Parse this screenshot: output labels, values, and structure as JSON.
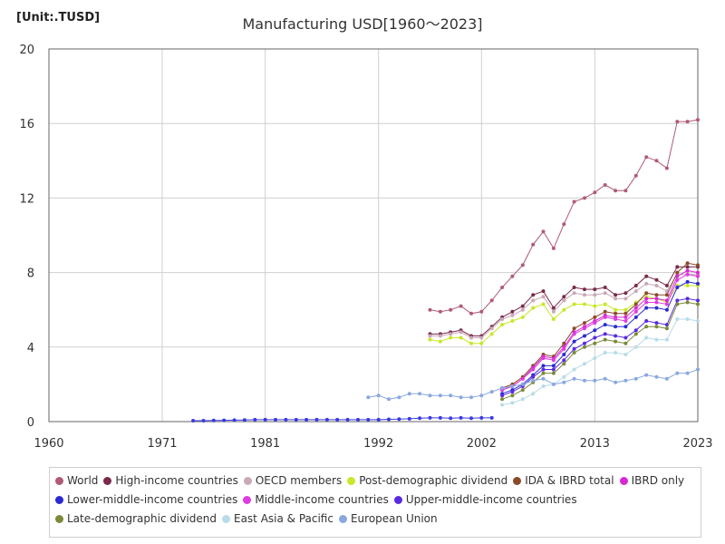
{
  "unit_label": "[Unit:.TUSD]",
  "chart_data": {
    "type": "line",
    "title": "Manufacturing USD[1960～2023]",
    "xlabel": "",
    "ylabel": "",
    "xlim": [
      1960,
      2023
    ],
    "ylim": [
      0,
      20
    ],
    "x_ticks": [
      "1960",
      "1971",
      "1981",
      "1992",
      "2002",
      "2013",
      "2023"
    ],
    "y_ticks": [
      "0",
      "4",
      "8",
      "12",
      "16",
      "20"
    ],
    "grid": true,
    "legend_position": "bottom",
    "series": [
      {
        "name": "World",
        "color": "#b05a7a",
        "x": [
          1997,
          1998,
          1999,
          2000,
          2001,
          2002,
          2003,
          2004,
          2005,
          2006,
          2007,
          2008,
          2009,
          2010,
          2011,
          2012,
          2013,
          2014,
          2015,
          2016,
          2017,
          2018,
          2019,
          2020,
          2021,
          2022,
          2023
        ],
        "y": [
          6.0,
          5.9,
          6.0,
          6.2,
          5.8,
          5.9,
          6.5,
          7.2,
          7.8,
          8.4,
          9.5,
          10.2,
          9.3,
          10.6,
          11.8,
          12.0,
          12.3,
          12.7,
          12.4,
          12.4,
          13.2,
          14.2,
          14.0,
          13.6,
          16.1,
          16.1,
          16.2
        ]
      },
      {
        "name": "High-income countries",
        "color": "#7a2a4a",
        "x": [
          1997,
          1998,
          1999,
          2000,
          2001,
          2002,
          2003,
          2004,
          2005,
          2006,
          2007,
          2008,
          2009,
          2010,
          2011,
          2012,
          2013,
          2014,
          2015,
          2016,
          2017,
          2018,
          2019,
          2020,
          2021,
          2022,
          2023
        ],
        "y": [
          4.7,
          4.7,
          4.8,
          4.9,
          4.6,
          4.6,
          5.1,
          5.6,
          5.9,
          6.2,
          6.8,
          7.0,
          6.1,
          6.7,
          7.2,
          7.1,
          7.1,
          7.2,
          6.8,
          6.9,
          7.3,
          7.8,
          7.6,
          7.3,
          8.3,
          8.3,
          8.3
        ]
      },
      {
        "name": "OECD members",
        "color": "#c9a8b8",
        "x": [
          1997,
          1998,
          1999,
          2000,
          2001,
          2002,
          2003,
          2004,
          2005,
          2006,
          2007,
          2008,
          2009,
          2010,
          2011,
          2012,
          2013,
          2014,
          2015,
          2016,
          2017,
          2018,
          2019,
          2020,
          2021,
          2022,
          2023
        ],
        "y": [
          4.6,
          4.6,
          4.7,
          4.8,
          4.5,
          4.5,
          5.0,
          5.5,
          5.7,
          6.0,
          6.5,
          6.7,
          5.9,
          6.5,
          6.9,
          6.8,
          6.8,
          6.9,
          6.6,
          6.6,
          7.0,
          7.4,
          7.3,
          7.0,
          7.9,
          7.9,
          7.9
        ]
      },
      {
        "name": "Post-demographic dividend",
        "color": "#c8e82a",
        "x": [
          1997,
          1998,
          1999,
          2000,
          2001,
          2002,
          2003,
          2004,
          2005,
          2006,
          2007,
          2008,
          2009,
          2010,
          2011,
          2012,
          2013,
          2014,
          2015,
          2016,
          2017,
          2018,
          2019,
          2020,
          2021,
          2022,
          2023
        ],
        "y": [
          4.4,
          4.3,
          4.5,
          4.5,
          4.2,
          4.2,
          4.7,
          5.2,
          5.4,
          5.6,
          6.1,
          6.3,
          5.5,
          6.0,
          6.3,
          6.3,
          6.2,
          6.3,
          6.0,
          6.0,
          6.4,
          6.7,
          6.6,
          6.4,
          7.3,
          7.3,
          7.3
        ]
      },
      {
        "name": "IDA & IBRD total",
        "color": "#8a4a2a",
        "x": [
          2004,
          2005,
          2006,
          2007,
          2008,
          2009,
          2010,
          2011,
          2012,
          2013,
          2014,
          2015,
          2016,
          2017,
          2018,
          2019,
          2020,
          2021,
          2022,
          2023
        ],
        "y": [
          1.8,
          2.0,
          2.4,
          3.0,
          3.6,
          3.5,
          4.2,
          5.0,
          5.3,
          5.6,
          5.9,
          5.8,
          5.8,
          6.3,
          6.9,
          6.8,
          6.8,
          8.0,
          8.5,
          8.4
        ]
      },
      {
        "name": "IBRD only",
        "color": "#d42ad4",
        "x": [
          2004,
          2005,
          2006,
          2007,
          2008,
          2009,
          2010,
          2011,
          2012,
          2013,
          2014,
          2015,
          2016,
          2017,
          2018,
          2019,
          2020,
          2021,
          2022,
          2023
        ],
        "y": [
          1.7,
          1.9,
          2.3,
          2.9,
          3.5,
          3.4,
          4.0,
          4.8,
          5.1,
          5.4,
          5.7,
          5.6,
          5.6,
          6.1,
          6.6,
          6.6,
          6.5,
          7.8,
          8.1,
          8.0
        ]
      },
      {
        "name": "Lower-middle-income countries",
        "color": "#2a2ad4",
        "x": [
          2004,
          2005,
          2006,
          2007,
          2008,
          2009,
          2010,
          2011,
          2012,
          2013,
          2014,
          2015,
          2016,
          2017,
          2018,
          2019,
          2020,
          2021,
          2022,
          2023
        ],
        "y": [
          1.5,
          1.7,
          2.0,
          2.5,
          3.0,
          3.0,
          3.6,
          4.3,
          4.6,
          4.9,
          5.2,
          5.1,
          5.1,
          5.6,
          6.1,
          6.1,
          6.0,
          7.2,
          7.5,
          7.4
        ]
      },
      {
        "name": "Middle-income countries",
        "color": "#e03ae0",
        "x": [
          2004,
          2005,
          2006,
          2007,
          2008,
          2009,
          2010,
          2011,
          2012,
          2013,
          2014,
          2015,
          2016,
          2017,
          2018,
          2019,
          2020,
          2021,
          2022,
          2023
        ],
        "y": [
          1.7,
          1.9,
          2.3,
          2.8,
          3.4,
          3.3,
          3.9,
          4.7,
          5.0,
          5.3,
          5.6,
          5.5,
          5.4,
          5.9,
          6.4,
          6.4,
          6.3,
          7.6,
          7.9,
          7.8
        ]
      },
      {
        "name": "Upper-middle-income countries",
        "color": "#5a2ae0",
        "x": [
          2004,
          2005,
          2006,
          2007,
          2008,
          2009,
          2010,
          2011,
          2012,
          2013,
          2014,
          2015,
          2016,
          2017,
          2018,
          2019,
          2020,
          2021,
          2022,
          2023
        ],
        "y": [
          1.4,
          1.6,
          1.9,
          2.4,
          2.8,
          2.8,
          3.3,
          3.9,
          4.2,
          4.5,
          4.7,
          4.6,
          4.5,
          4.9,
          5.4,
          5.3,
          5.2,
          6.5,
          6.6,
          6.5
        ]
      },
      {
        "name": "Late-demographic dividend",
        "color": "#7a8a3a",
        "x": [
          2004,
          2005,
          2006,
          2007,
          2008,
          2009,
          2010,
          2011,
          2012,
          2013,
          2014,
          2015,
          2016,
          2017,
          2018,
          2019,
          2020,
          2021,
          2022,
          2023
        ],
        "y": [
          1.2,
          1.4,
          1.7,
          2.1,
          2.6,
          2.6,
          3.1,
          3.7,
          4.0,
          4.2,
          4.4,
          4.3,
          4.2,
          4.7,
          5.1,
          5.1,
          5.0,
          6.3,
          6.4,
          6.3
        ]
      },
      {
        "name": "East Asia & Pacific",
        "color": "#b8dce8",
        "x": [
          2004,
          2005,
          2006,
          2007,
          2008,
          2009,
          2010,
          2011,
          2012,
          2013,
          2014,
          2015,
          2016,
          2017,
          2018,
          2019,
          2020,
          2021,
          2022,
          2023
        ],
        "y": [
          0.9,
          1.0,
          1.2,
          1.5,
          1.9,
          2.0,
          2.4,
          2.8,
          3.1,
          3.4,
          3.7,
          3.7,
          3.6,
          4.0,
          4.5,
          4.4,
          4.4,
          5.5,
          5.5,
          5.4
        ]
      },
      {
        "name": "European Union",
        "color": "#8aa8e0",
        "x": [
          1991,
          1992,
          1993,
          1994,
          1995,
          1996,
          1997,
          1998,
          1999,
          2000,
          2001,
          2002,
          2003,
          2004,
          2005,
          2006,
          2007,
          2008,
          2009,
          2010,
          2011,
          2012,
          2013,
          2014,
          2015,
          2016,
          2017,
          2018,
          2019,
          2020,
          2021,
          2022,
          2023
        ],
        "y": [
          1.3,
          1.4,
          1.2,
          1.3,
          1.5,
          1.5,
          1.4,
          1.4,
          1.4,
          1.3,
          1.3,
          1.4,
          1.6,
          1.8,
          1.9,
          2.0,
          2.2,
          2.3,
          2.0,
          2.1,
          2.3,
          2.2,
          2.2,
          2.3,
          2.1,
          2.2,
          2.3,
          2.5,
          2.4,
          2.3,
          2.6,
          2.6,
          2.8
        ]
      },
      {
        "name": "",
        "color": "#3a3ae0",
        "x": [
          1974,
          1975,
          1976,
          1977,
          1978,
          1979,
          1980,
          1981,
          1982,
          1983,
          1984,
          1985,
          1986,
          1987,
          1988,
          1989,
          1990,
          1991,
          1992,
          1993,
          1994,
          1995,
          1996,
          1997,
          1998,
          1999,
          2000,
          2001,
          2002,
          2003
        ],
        "y": [
          0.05,
          0.05,
          0.06,
          0.07,
          0.08,
          0.09,
          0.1,
          0.1,
          0.1,
          0.1,
          0.1,
          0.1,
          0.1,
          0.1,
          0.1,
          0.1,
          0.1,
          0.1,
          0.1,
          0.12,
          0.13,
          0.15,
          0.18,
          0.2,
          0.2,
          0.18,
          0.2,
          0.18,
          0.2,
          0.2
        ]
      }
    ]
  }
}
